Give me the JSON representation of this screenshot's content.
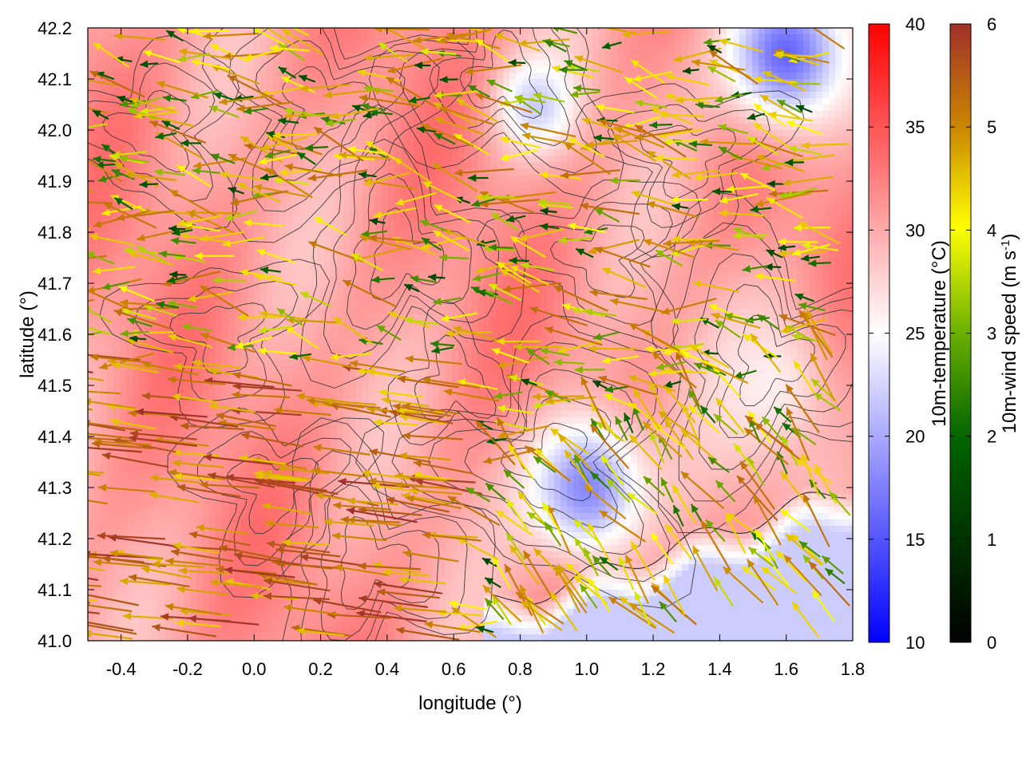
{
  "chart_data": {
    "type": "heatmap",
    "title": "",
    "xlabel": "longitude (°)",
    "ylabel": "latitude (°)",
    "xlim": [
      -0.5,
      1.8
    ],
    "ylim": [
      41.0,
      42.2
    ],
    "xticks": [
      "-0.4",
      "-0.2",
      "0.0",
      "0.2",
      "0.4",
      "0.6",
      "0.8",
      "1.0",
      "1.2",
      "1.4",
      "1.6",
      "1.8"
    ],
    "xtick_values": [
      -0.4,
      -0.2,
      0.0,
      0.2,
      0.4,
      0.6,
      0.8,
      1.0,
      1.2,
      1.4,
      1.6,
      1.8
    ],
    "yticks": [
      "41.0",
      "41.1",
      "41.2",
      "41.3",
      "41.4",
      "41.5",
      "41.6",
      "41.7",
      "41.8",
      "41.9",
      "42.0",
      "42.1",
      "42.2"
    ],
    "ytick_values": [
      41.0,
      41.1,
      41.2,
      41.3,
      41.4,
      41.5,
      41.6,
      41.7,
      41.8,
      41.9,
      42.0,
      42.1,
      42.2
    ],
    "grid": false,
    "colorbars": [
      {
        "label": "10m-temperature (°C)",
        "range": [
          10,
          40
        ],
        "ticks": [
          "10",
          "15",
          "20",
          "25",
          "30",
          "35",
          "40"
        ],
        "tick_values": [
          10,
          15,
          20,
          25,
          30,
          35,
          40
        ],
        "colors": [
          "#0000ff",
          "#ffffff",
          "#ff0000"
        ]
      },
      {
        "label": "10m-wind speed (m s",
        "label_superscript": "-1",
        "label_suffix": ")",
        "range": [
          0,
          6
        ],
        "ticks": [
          "0",
          "1",
          "2",
          "3",
          "4",
          "5",
          "6"
        ],
        "tick_values": [
          0,
          1,
          2,
          3,
          4,
          5,
          6
        ],
        "colors": [
          "#000000",
          "#006400",
          "#ffff00",
          "#cc8800",
          "#a0302a"
        ]
      }
    ],
    "temperature_field": {
      "base": 31,
      "cool_spots": [
        {
          "lon": 1.0,
          "lat": 41.3,
          "min": 18,
          "radius": 0.18
        },
        {
          "lon": 1.6,
          "lat": 42.15,
          "min": 16,
          "radius": 0.18
        },
        {
          "lon": 0.85,
          "lat": 42.05,
          "min": 22,
          "radius": 0.12
        },
        {
          "lon": 1.55,
          "lat": 41.5,
          "min": 26,
          "radius": 0.2
        }
      ],
      "sea_region": {
        "description_free": true,
        "temp": 22
      }
    },
    "wind_field": {
      "arrow_count": 900,
      "prevailing_direction": "west",
      "strong_region": "south-west",
      "onshore_region": "south-east"
    }
  }
}
